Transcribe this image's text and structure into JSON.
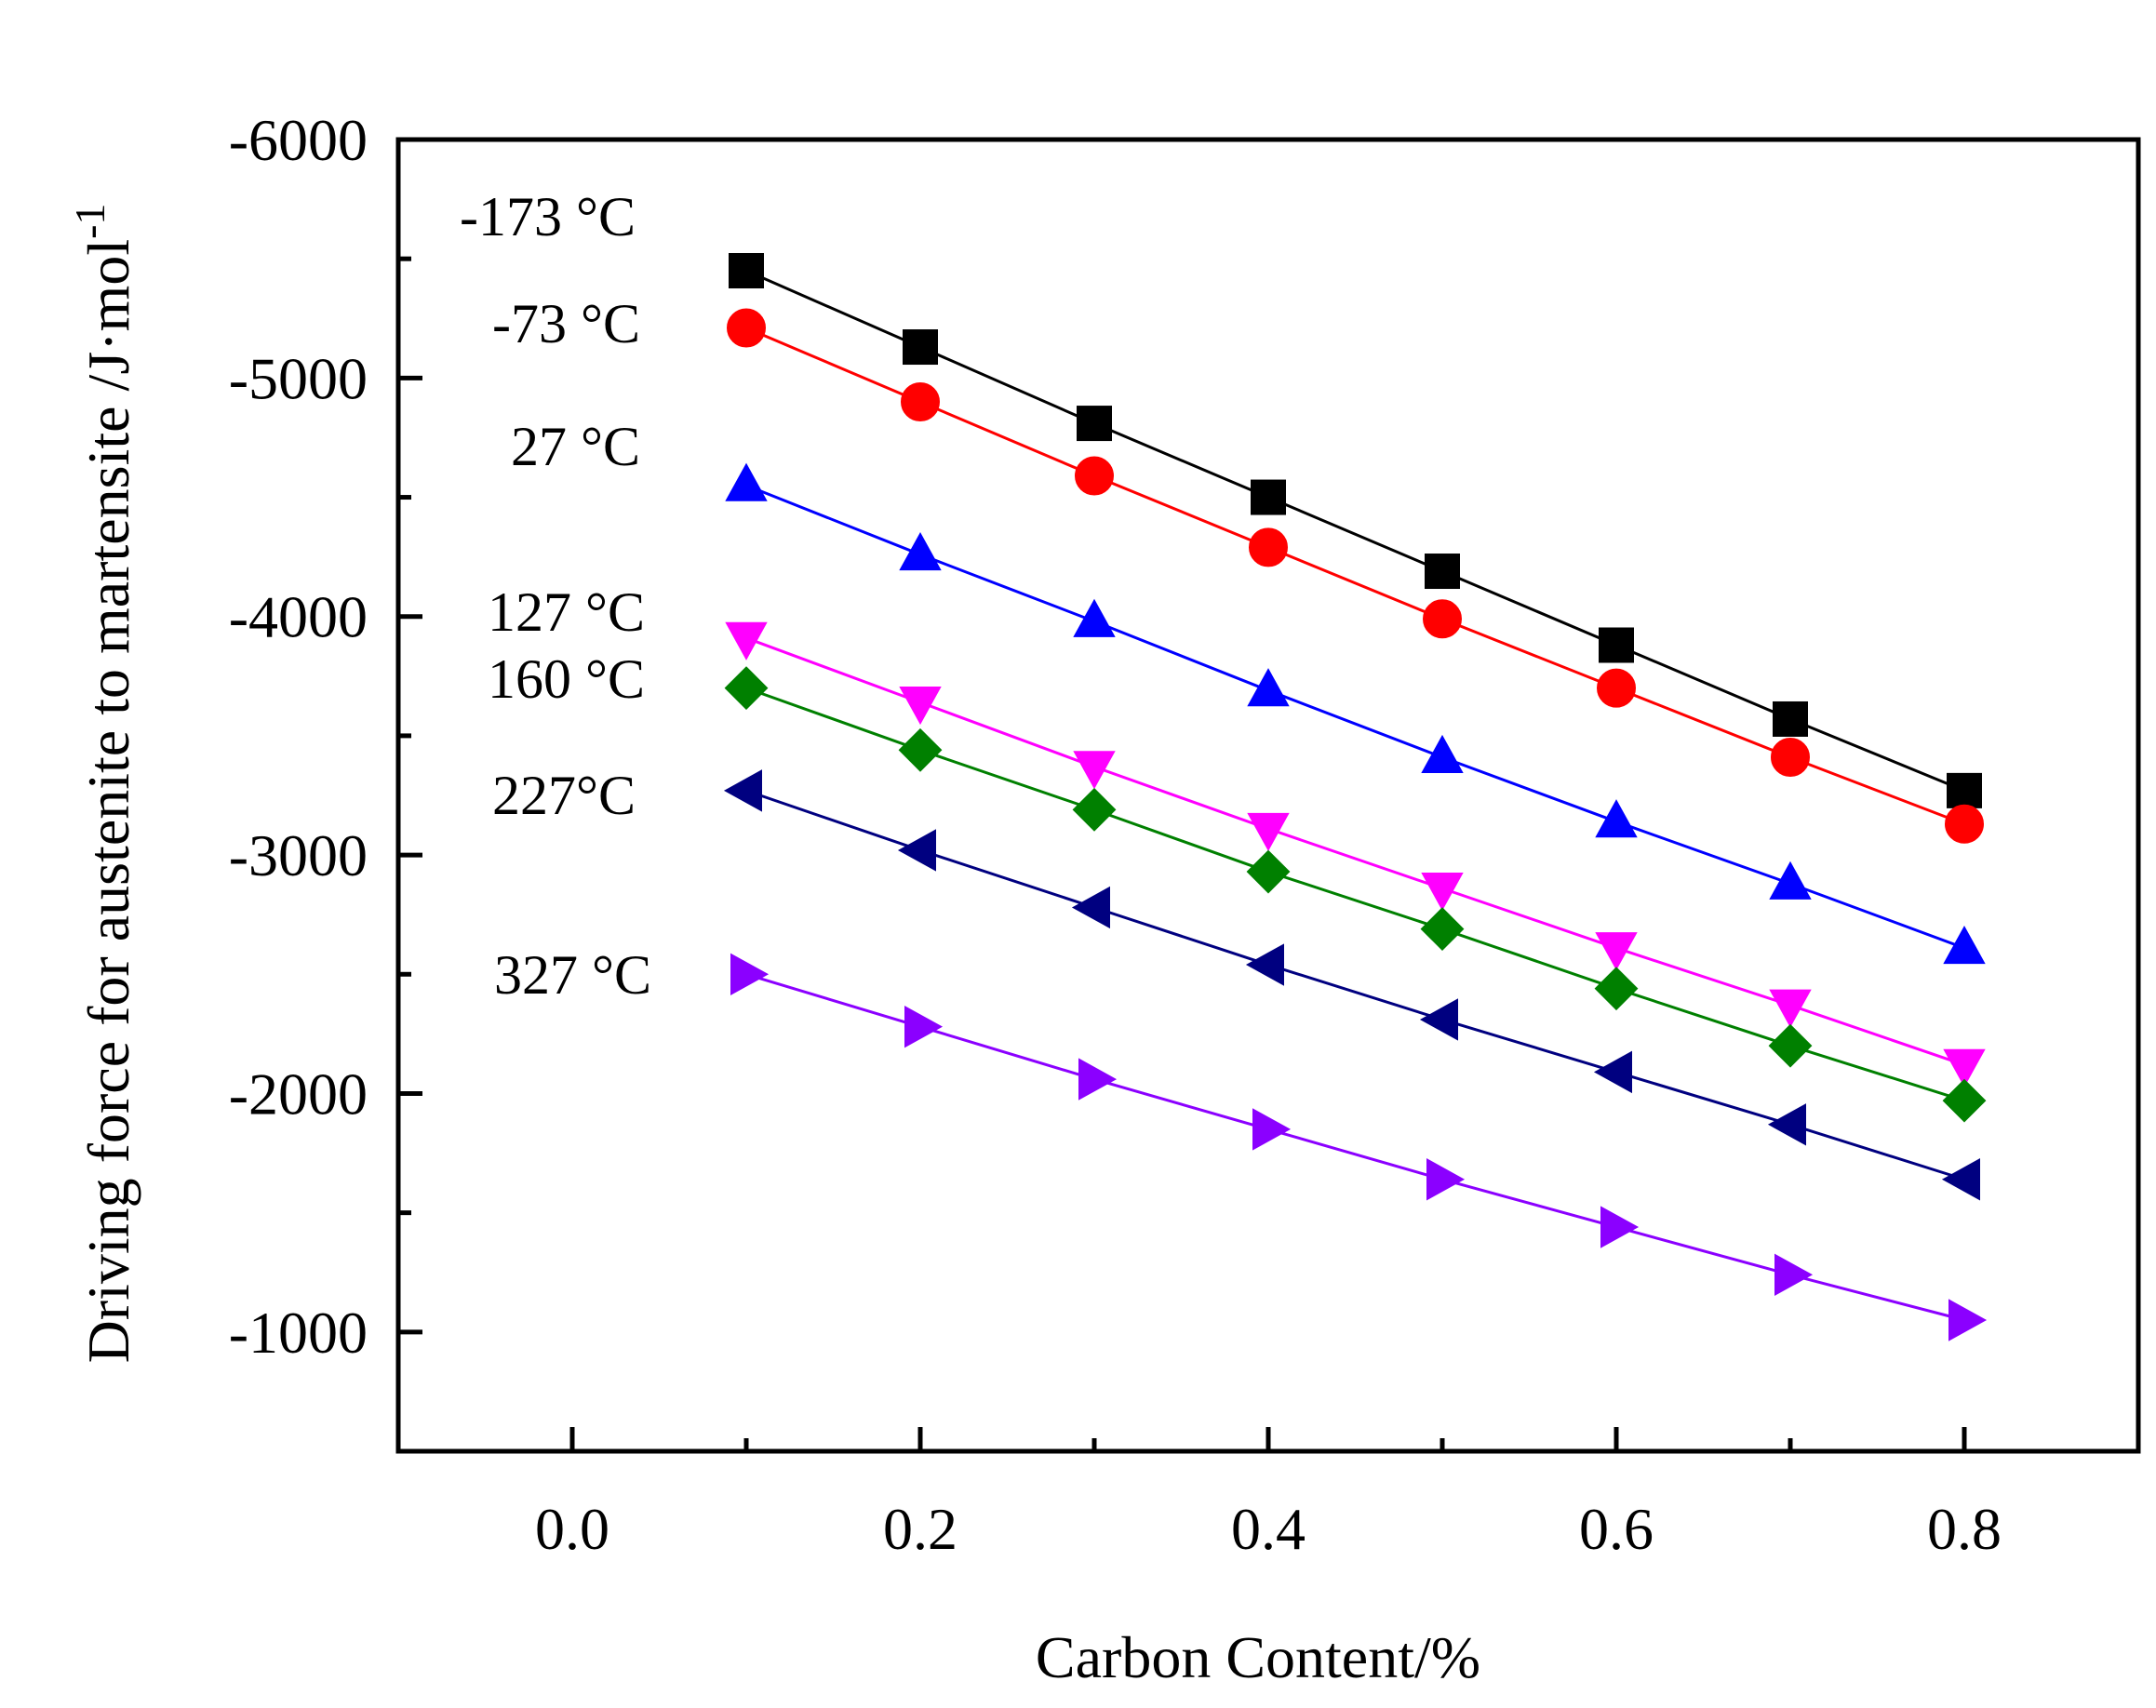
{
  "chart_data": {
    "type": "line",
    "title": "",
    "xlabel": "Carbon Content/%",
    "ylabel": "Driving force for austenite to martensite /J·mol",
    "ylabel_superscript": "-1",
    "xlim": [
      -0.1,
      0.9
    ],
    "ylim": [
      -500,
      -6000
    ],
    "xticks": [
      0.0,
      0.2,
      0.4,
      0.6,
      0.8
    ],
    "xtick_labels": [
      "0.0",
      "0.2",
      "0.4",
      "0.6",
      "0.8"
    ],
    "yticks": [
      -6000,
      -5000,
      -4000,
      -3000,
      -2000,
      -1000
    ],
    "ytick_labels": [
      "-6000",
      "-5000",
      "-4000",
      "-3000",
      "-2000",
      "-1000"
    ],
    "grid": false,
    "x": [
      0.1,
      0.2,
      0.3,
      0.4,
      0.5,
      0.6,
      0.7,
      0.8
    ],
    "series": [
      {
        "name": "-173 °C",
        "color": "#000000",
        "marker": "square",
        "values": [
          -5450,
          -5130,
          -4810,
          -4500,
          -4190,
          -3880,
          -3570,
          -3270
        ]
      },
      {
        "name": "-73 °C",
        "color": "#ff0000",
        "marker": "circle",
        "values": [
          -5210,
          -4900,
          -4590,
          -4290,
          -3990,
          -3700,
          -3410,
          -3130
        ]
      },
      {
        "name": "27 °C",
        "color": "#0000ff",
        "marker": "triangle-up",
        "values": [
          -4550,
          -4260,
          -3980,
          -3690,
          -3410,
          -3140,
          -2880,
          -2610
        ]
      },
      {
        "name": "127 °C",
        "color": "#ff00ff",
        "marker": "triangle-down",
        "values": [
          -3910,
          -3640,
          -3370,
          -3110,
          -2860,
          -2610,
          -2370,
          -2120
        ]
      },
      {
        "name": "160 °C",
        "color": "#008000",
        "marker": "diamond",
        "values": [
          -3700,
          -3440,
          -3190,
          -2930,
          -2690,
          -2440,
          -2200,
          -1970
        ]
      },
      {
        "name": "227°C",
        "color": "#000080",
        "marker": "triangle-left",
        "values": [
          -3270,
          -3020,
          -2780,
          -2540,
          -2310,
          -2090,
          -1870,
          -1640
        ]
      },
      {
        "name": "327 °C",
        "color": "#8b00ff",
        "marker": "triangle-right",
        "values": [
          -2500,
          -2280,
          -2060,
          -1850,
          -1640,
          -1440,
          -1240,
          -1050
        ]
      }
    ]
  }
}
